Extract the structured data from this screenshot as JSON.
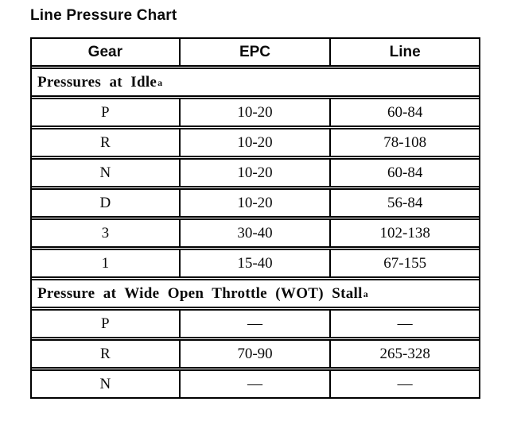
{
  "title": "Line Pressure Chart",
  "colors": {
    "border": "#000000",
    "background": "#ffffff",
    "text": "#0a0a0a"
  },
  "table": {
    "columns": [
      "Gear",
      "EPC",
      "Line"
    ],
    "sections": [
      {
        "header": "Pressures at Idle",
        "footnote_marker": "a",
        "rows": [
          {
            "gear": "P",
            "epc": "10-20",
            "line": "60-84"
          },
          {
            "gear": "R",
            "epc": "10-20",
            "line": "78-108"
          },
          {
            "gear": "N",
            "epc": "10-20",
            "line": "60-84"
          },
          {
            "gear": "D",
            "epc": "10-20",
            "line": "56-84"
          },
          {
            "gear": "3",
            "epc": "30-40",
            "line": "102-138"
          },
          {
            "gear": "1",
            "epc": "15-40",
            "line": "67-155"
          }
        ]
      },
      {
        "header": "Pressure at Wide Open Throttle (WOT) Stall",
        "footnote_marker": "a",
        "rows": [
          {
            "gear": "P",
            "epc": "—",
            "line": "—"
          },
          {
            "gear": "R",
            "epc": "70-90",
            "line": "265-328"
          },
          {
            "gear": "N",
            "epc": "—",
            "line": "—"
          }
        ]
      }
    ]
  }
}
